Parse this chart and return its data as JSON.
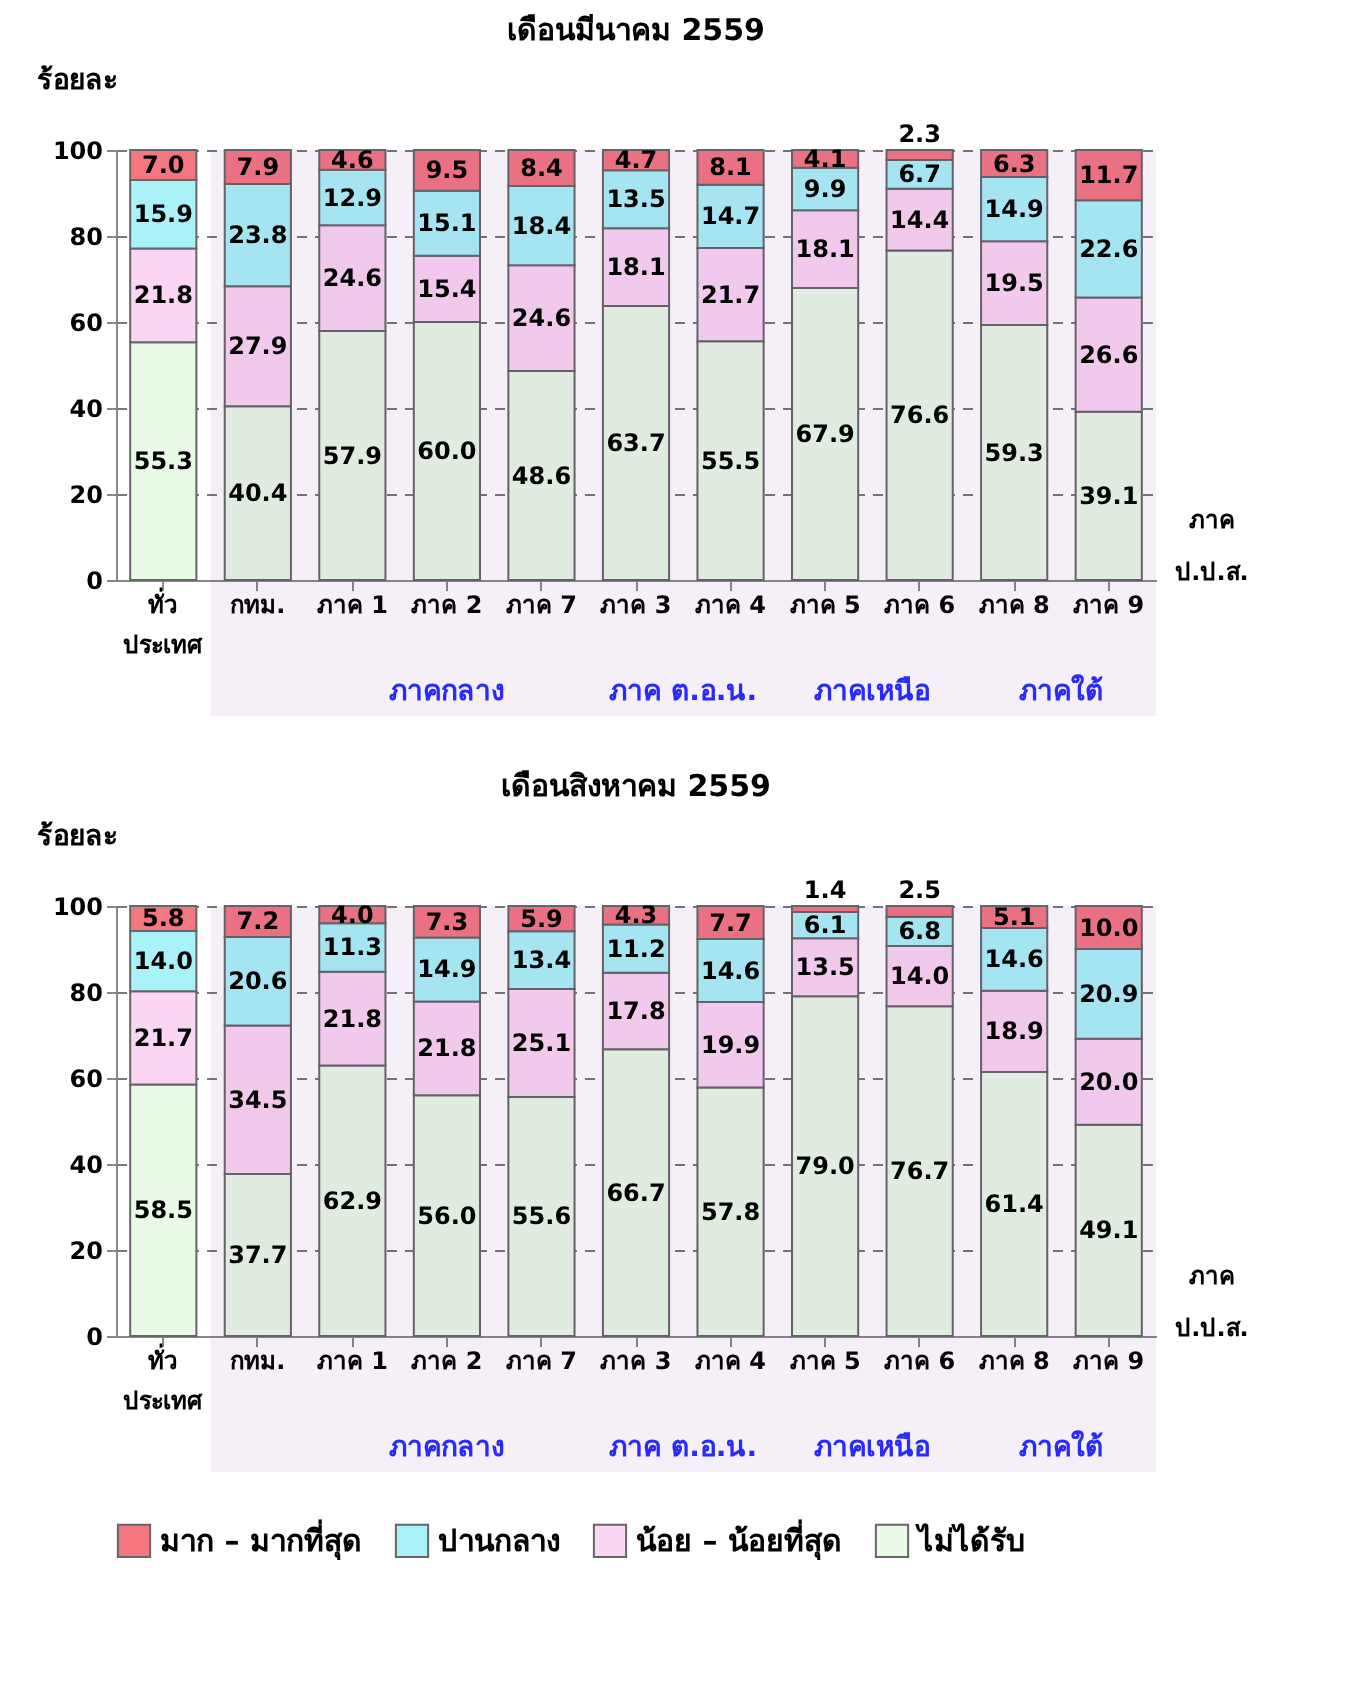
{
  "chart_data": [
    {
      "type": "bar",
      "title": "เดือนมีนาคม 2559",
      "ylabel": "ร้อยละ",
      "xlabel": "ภาค ป.ป.ส.",
      "stacked": true,
      "grid": "y",
      "ylim": [
        0,
        100
      ],
      "yticks": [
        0,
        20,
        40,
        60,
        80,
        100
      ],
      "categories": [
        "ทั่ว\nประเทศ",
        "กทม.",
        "ภาค 1",
        "ภาค 2",
        "ภาค 7",
        "ภาค 3",
        "ภาค 4",
        "ภาค 5",
        "ภาค 6",
        "ภาค 8",
        "ภาค 9"
      ],
      "series": [
        {
          "color": "#e9fbe6",
          "values": [
            55.3,
            40.4,
            57.9,
            60.0,
            48.6,
            63.7,
            55.5,
            67.9,
            76.6,
            59.3,
            39.1
          ],
          "value_labels": [
            "55.3",
            "40.4",
            "57.9",
            "60.0",
            "48.6",
            "63.7",
            "55.5",
            "67.9",
            "76.6",
            "59.3",
            "39.1"
          ]
        },
        {
          "color": "#fbd5f4",
          "values": [
            21.8,
            27.9,
            24.6,
            15.4,
            24.6,
            18.1,
            21.7,
            18.1,
            14.4,
            19.5,
            26.6
          ],
          "value_labels": [
            "21.8",
            "27.9",
            "24.6",
            "15.4",
            "24.6",
            "18.1",
            "21.7",
            "18.1",
            "14.4",
            "19.5",
            "26.6"
          ]
        },
        {
          "color": "#a9f3f8",
          "values": [
            15.9,
            23.8,
            12.9,
            15.1,
            18.4,
            13.5,
            14.7,
            9.9,
            6.7,
            14.9,
            22.6
          ],
          "value_labels": [
            "15.9",
            "23.8",
            "12.9",
            "15.1",
            "18.4",
            "13.5",
            "14.7",
            "9.9",
            "6.7",
            "14.9",
            "22.6"
          ]
        },
        {
          "color": "#f4777f",
          "values": [
            7.0,
            7.9,
            4.6,
            9.5,
            8.4,
            4.7,
            8.1,
            4.1,
            2.3,
            6.3,
            11.7
          ],
          "value_labels": [
            "7.0",
            "7.9",
            "4.6",
            "9.5",
            "8.4",
            "4.7",
            "8.1",
            "4.1",
            "2.3",
            "6.3",
            "11.7"
          ]
        }
      ],
      "bands": [
        {
          "axis": "x",
          "from": "กทม.",
          "to": "กทม.",
          "label": null,
          "color": "#7030a0"
        },
        {
          "axis": "x",
          "from": "ภาค 1",
          "to": "ภาค 7",
          "label": "ภาคกลาง",
          "color": "#7030a0"
        },
        {
          "axis": "x",
          "from": "ภาค 3",
          "to": "ภาค 4",
          "label": "ภาค ต.อ.น.",
          "color": "#7030a0"
        },
        {
          "axis": "x",
          "from": "ภาค 5",
          "to": "ภาค 6",
          "label": "ภาคเหนือ",
          "color": "#7030a0"
        },
        {
          "axis": "x",
          "from": "ภาค 8",
          "to": "ภาค 9",
          "label": "ภาคใต้",
          "color": "#7030a0"
        }
      ]
    },
    {
      "type": "bar",
      "title": "เดือนสิงหาคม 2559",
      "ylabel": "ร้อยละ",
      "xlabel": "ภาค ป.ป.ส.",
      "stacked": true,
      "grid": "y",
      "legend": "bottom",
      "ylim": [
        0,
        100
      ],
      "yticks": [
        0,
        20,
        40,
        60,
        80,
        100
      ],
      "categories": [
        "ทั่ว\nประเทศ",
        "กทม.",
        "ภาค 1",
        "ภาค 2",
        "ภาค 7",
        "ภาค 3",
        "ภาค 4",
        "ภาค 5",
        "ภาค 6",
        "ภาค 8",
        "ภาค 9"
      ],
      "series": [
        {
          "name": "ไม่ได้รับ",
          "color": "#e9fbe6",
          "values": [
            58.5,
            37.7,
            62.9,
            56.0,
            55.6,
            66.7,
            57.8,
            79.0,
            76.7,
            61.4,
            49.1
          ],
          "value_labels": [
            "58.5",
            "37.7",
            "62.9",
            "56.0",
            "55.6",
            "66.7",
            "57.8",
            "79.0",
            "76.7",
            "61.4",
            "49.1"
          ]
        },
        {
          "name": "น้อย – น้อยที่สุด",
          "color": "#fbd5f4",
          "values": [
            21.7,
            34.5,
            21.8,
            21.8,
            25.1,
            17.8,
            19.9,
            13.5,
            14.0,
            18.9,
            20.0
          ],
          "value_labels": [
            "21.7",
            "34.5",
            "21.8",
            "21.8",
            "25.1",
            "17.8",
            "19.9",
            "13.5",
            "14.0",
            "18.9",
            "20.0"
          ]
        },
        {
          "name": "ปานกลาง",
          "color": "#a9f3f8",
          "values": [
            14.0,
            20.6,
            11.3,
            14.9,
            13.4,
            11.2,
            14.6,
            6.1,
            6.8,
            14.6,
            20.9
          ],
          "value_labels": [
            "14.0",
            "20.6",
            "11.3",
            "14.9",
            "13.4",
            "11.2",
            "14.6",
            "6.1",
            "6.8",
            "14.6",
            "20.9"
          ]
        },
        {
          "name": "มาก – มากที่สุด",
          "color": "#f4777f",
          "values": [
            5.8,
            7.2,
            4.0,
            7.3,
            5.9,
            4.3,
            7.7,
            1.4,
            2.5,
            5.1,
            10.0
          ],
          "value_labels": [
            "5.8",
            "7.2",
            "4.0",
            "7.3",
            "5.9",
            "4.3",
            "7.7",
            "1.4",
            "2.5",
            "5.1",
            "10.0"
          ]
        }
      ],
      "bands": [
        {
          "axis": "x",
          "from": "กทม.",
          "to": "กทม.",
          "label": null,
          "color": "#7030a0"
        },
        {
          "axis": "x",
          "from": "ภาค 1",
          "to": "ภาค 7",
          "label": "ภาคกลาง",
          "color": "#7030a0"
        },
        {
          "axis": "x",
          "from": "ภาค 3",
          "to": "ภาค 4",
          "label": "ภาค ต.อ.น.",
          "color": "#7030a0"
        },
        {
          "axis": "x",
          "from": "ภาค 5",
          "to": "ภาค 6",
          "label": "ภาคเหนือ",
          "color": "#7030a0"
        },
        {
          "axis": "x",
          "from": "ภาค 8",
          "to": "ภาค 9",
          "label": "ภาคใต้",
          "color": "#7030a0"
        }
      ]
    }
  ]
}
